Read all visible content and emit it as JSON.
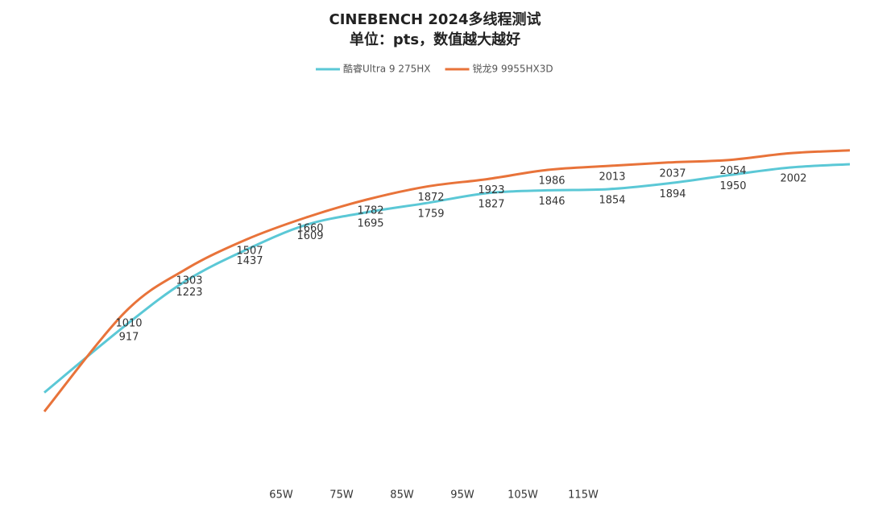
{
  "chart_data": {
    "type": "line",
    "title": "CINEBENCH 2024多线程测试",
    "subtitle": "单位：pts，数值越大越好",
    "categories": [
      null,
      null,
      null,
      null,
      "65W",
      "75W",
      "85W",
      "95W",
      "105W",
      "115W",
      null,
      null,
      null,
      null
    ],
    "ylim": [
      0,
      2400
    ],
    "series": [
      {
        "name": "酷睿Ultra 9 275HX",
        "color": "#5bc8d6",
        "values": [
          460,
          917,
          1223,
          1437,
          1609,
          1695,
          1759,
          1827,
          1846,
          1854,
          1894,
          1950,
          2002,
          2025
        ],
        "value_labels": [
          null,
          "917",
          "1223",
          "1437",
          "1609",
          "1695",
          "1759",
          "1827",
          "1846",
          "1854",
          "1894",
          "1950",
          "2002",
          null
        ]
      },
      {
        "name": "锐龙9 9955HX3D",
        "color": "#e8733a",
        "values": [
          330,
          1010,
          1303,
          1507,
          1660,
          1782,
          1872,
          1923,
          1986,
          2013,
          2037,
          2054,
          2100,
          2120
        ],
        "value_labels": [
          null,
          "1010",
          "1303",
          "1507",
          "1660",
          "1782",
          "1872",
          "1923",
          "1986",
          "2013",
          "2037",
          "2054",
          null,
          null
        ]
      }
    ]
  }
}
